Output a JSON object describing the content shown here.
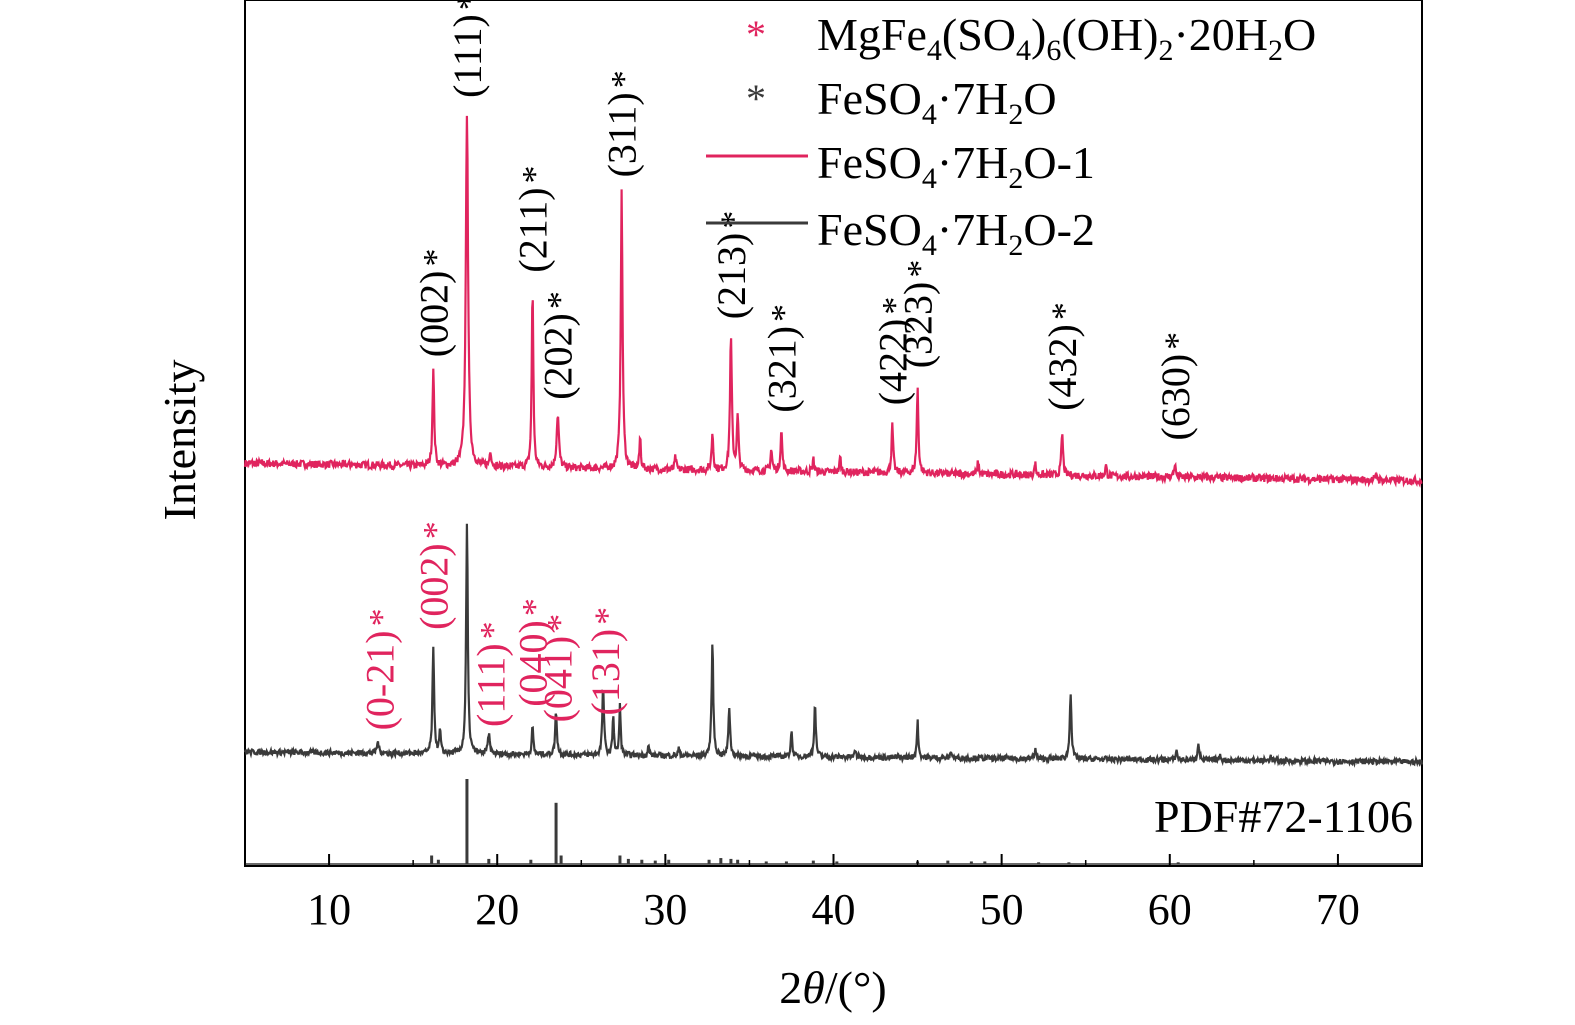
{
  "chart_data": {
    "type": "line",
    "xlabel_prefix": "2",
    "xlabel_theta": "θ",
    "xlabel_suffix": "/(°)",
    "ylabel": "Intensity",
    "xlim": [
      5,
      75
    ],
    "x_ticks": [
      10,
      20,
      30,
      40,
      50,
      60,
      70
    ],
    "grid": false,
    "legend_position": "top-right",
    "colors": {
      "red": "#e0245e",
      "black": "#3a3a3a",
      "axis": "#000000"
    },
    "legend": [
      {
        "kind": "marker",
        "color": "#e0245e",
        "symbol": "*",
        "label_parts": [
          [
            "MgFe",
            ""
          ],
          [
            "4",
            "sub"
          ],
          [
            "(SO",
            ""
          ],
          [
            "4",
            "sub"
          ],
          [
            ")",
            ""
          ],
          [
            "6",
            "sub"
          ],
          [
            "(OH)",
            ""
          ],
          [
            "2",
            "sub"
          ],
          [
            "·20H",
            ""
          ],
          [
            "2",
            "sub"
          ],
          [
            "O",
            ""
          ]
        ]
      },
      {
        "kind": "marker",
        "color": "#3a3a3a",
        "symbol": "*",
        "label_parts": [
          [
            "FeSO",
            ""
          ],
          [
            "4",
            "sub"
          ],
          [
            "·7H",
            ""
          ],
          [
            "2",
            "sub"
          ],
          [
            "O",
            ""
          ]
        ]
      },
      {
        "kind": "line",
        "color": "#e0245e",
        "label_parts": [
          [
            "FeSO",
            ""
          ],
          [
            "4",
            "sub"
          ],
          [
            "·7H",
            ""
          ],
          [
            "2",
            "sub"
          ],
          [
            "O-1",
            ""
          ]
        ]
      },
      {
        "kind": "line",
        "color": "#3a3a3a",
        "label_parts": [
          [
            "FeSO",
            ""
          ],
          [
            "4",
            "sub"
          ],
          [
            "·7H",
            ""
          ],
          [
            "2",
            "sub"
          ],
          [
            "O-2",
            ""
          ]
        ]
      }
    ],
    "series": [
      {
        "name": "FeSO4·7H2O-1",
        "color": "#e0245e",
        "baseline_intensity": 0.3,
        "peaks": [
          [
            16.2,
            0.9,
            0.12
          ],
          [
            18.2,
            3.35,
            0.16
          ],
          [
            19.6,
            0.15,
            0.12
          ],
          [
            22.1,
            1.7,
            0.11
          ],
          [
            23.6,
            0.5,
            0.16
          ],
          [
            27.4,
            2.6,
            0.13
          ],
          [
            28.5,
            0.3,
            0.1
          ],
          [
            30.6,
            0.12,
            0.1
          ],
          [
            32.8,
            0.35,
            0.12
          ],
          [
            33.9,
            1.25,
            0.13
          ],
          [
            34.3,
            0.5,
            0.12
          ],
          [
            36.3,
            0.2,
            0.12
          ],
          [
            36.9,
            0.38,
            0.12
          ],
          [
            38.8,
            0.12,
            0.1
          ],
          [
            40.4,
            0.14,
            0.1
          ],
          [
            43.5,
            0.45,
            0.12
          ],
          [
            45.0,
            0.8,
            0.12
          ],
          [
            48.6,
            0.12,
            0.1
          ],
          [
            52.0,
            0.1,
            0.1
          ],
          [
            53.6,
            0.4,
            0.12
          ],
          [
            56.2,
            0.1,
            0.1
          ],
          [
            60.3,
            0.12,
            0.12
          ],
          [
            72.3,
            0.06,
            0.1
          ]
        ]
      },
      {
        "name": "FeSO4·7H2O-2",
        "color": "#3a3a3a",
        "baseline_intensity": 0.2,
        "peaks": [
          [
            12.9,
            0.12,
            0.14
          ],
          [
            16.2,
            1.15,
            0.12
          ],
          [
            16.6,
            0.25,
            0.1
          ],
          [
            18.2,
            2.55,
            0.12
          ],
          [
            19.5,
            0.22,
            0.14
          ],
          [
            22.1,
            0.3,
            0.11
          ],
          [
            23.5,
            0.48,
            0.12
          ],
          [
            26.3,
            0.75,
            0.12
          ],
          [
            26.9,
            0.45,
            0.1
          ],
          [
            27.3,
            0.55,
            0.1
          ],
          [
            29.0,
            0.1,
            0.1
          ],
          [
            30.8,
            0.08,
            0.1
          ],
          [
            32.8,
            1.25,
            0.12
          ],
          [
            33.8,
            0.55,
            0.12
          ],
          [
            37.5,
            0.28,
            0.11
          ],
          [
            38.9,
            0.58,
            0.12
          ],
          [
            41.3,
            0.08,
            0.1
          ],
          [
            45.0,
            0.4,
            0.11
          ],
          [
            47.0,
            0.08,
            0.1
          ],
          [
            52.0,
            0.12,
            0.1
          ],
          [
            54.1,
            0.75,
            0.12
          ],
          [
            60.4,
            0.1,
            0.12
          ],
          [
            61.7,
            0.2,
            0.12
          ],
          [
            63.0,
            0.06,
            0.1
          ],
          [
            66.0,
            0.05,
            0.1
          ]
        ]
      }
    ],
    "reference": {
      "label": "PDF#72-1106",
      "color": "#3a3a3a",
      "sticks": [
        [
          16.1,
          0.1
        ],
        [
          16.5,
          0.05
        ],
        [
          18.2,
          1.0
        ],
        [
          19.5,
          0.06
        ],
        [
          22.0,
          0.05
        ],
        [
          23.5,
          0.72
        ],
        [
          23.8,
          0.1
        ],
        [
          27.3,
          0.1
        ],
        [
          27.8,
          0.06
        ],
        [
          28.6,
          0.05
        ],
        [
          29.4,
          0.04
        ],
        [
          30.2,
          0.05
        ],
        [
          32.6,
          0.05
        ],
        [
          33.3,
          0.07
        ],
        [
          33.9,
          0.06
        ],
        [
          34.3,
          0.05
        ],
        [
          36.0,
          0.03
        ],
        [
          37.2,
          0.03
        ],
        [
          38.8,
          0.04
        ],
        [
          40.2,
          0.03
        ],
        [
          45.0,
          0.03
        ],
        [
          46.8,
          0.04
        ],
        [
          48.2,
          0.03
        ],
        [
          49.0,
          0.03
        ],
        [
          52.2,
          0.02
        ],
        [
          54.0,
          0.02
        ],
        [
          60.5,
          0.02
        ]
      ]
    },
    "annotations_top": [
      {
        "hkl": "(002)",
        "star": "*",
        "x": 16.2,
        "color": "black"
      },
      {
        "hkl": "(111)",
        "star": "*",
        "x": 18.2,
        "color": "black"
      },
      {
        "hkl": "(211)",
        "star": "*",
        "x": 22.1,
        "color": "black"
      },
      {
        "hkl": "(202)",
        "star": "*",
        "x": 23.6,
        "color": "black"
      },
      {
        "hkl": "(311)",
        "star": "*",
        "x": 27.4,
        "color": "black"
      },
      {
        "hkl": "(213)",
        "star": "*",
        "x": 33.9,
        "color": "black"
      },
      {
        "hkl": "(321)",
        "star": "*",
        "x": 36.9,
        "color": "black"
      },
      {
        "hkl": "(422)",
        "star": "*",
        "x": 43.5,
        "color": "black"
      },
      {
        "hkl": "(323)",
        "star": "*",
        "x": 45.0,
        "color": "black"
      },
      {
        "hkl": "(432)",
        "star": "*",
        "x": 53.6,
        "color": "black"
      },
      {
        "hkl": "(630)",
        "star": "*",
        "x": 60.3,
        "color": "black"
      }
    ],
    "annotations_bottom": [
      {
        "hkl": "(0-21)",
        "star": "*",
        "x": 13.0,
        "color": "red"
      },
      {
        "hkl": "(002)",
        "star": "*",
        "x": 16.2,
        "color": "red"
      },
      {
        "hkl": "(111)",
        "star": "*",
        "x": 19.6,
        "color": "red"
      },
      {
        "hkl": "(040)",
        "star": "*",
        "x": 22.1,
        "color": "red"
      },
      {
        "hkl": "(041)",
        "star": "*",
        "x": 23.6,
        "color": "red"
      },
      {
        "hkl": "(131)",
        "star": "*",
        "x": 26.4,
        "color": "red"
      }
    ]
  }
}
